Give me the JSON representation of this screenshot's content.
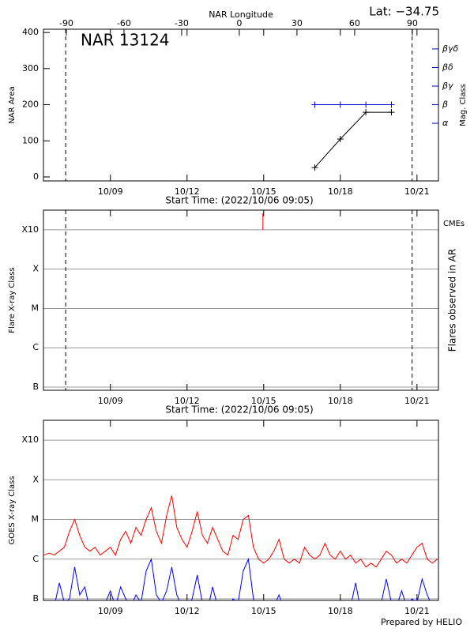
{
  "chart_data": [
    {
      "type": "line",
      "title": "NAR 13124",
      "annotation": "Lat: −34.75",
      "x_label": "Start Time: (2022/10/06 09:05)",
      "x2_label": "NAR Longitude",
      "y_label": "NAR Area",
      "y2_label": "Mag. Class",
      "y2_color": "#0000cc",
      "x": [
        17,
        18,
        19,
        20
      ],
      "series": [
        {
          "color": "#000000",
          "marker": "plus",
          "values": [
            26,
            105,
            179,
            179
          ]
        },
        {
          "color": "#0000cc",
          "marker": "plus",
          "axis": "y2",
          "values": [
            2,
            2,
            2,
            2
          ]
        }
      ],
      "xlim": [
        6.38,
        21.84
      ],
      "xticks": [
        {
          "value": 9,
          "label": "10/09"
        },
        {
          "value": 12,
          "label": "10/12"
        },
        {
          "value": 15,
          "label": "10/15"
        },
        {
          "value": 18,
          "label": "10/18"
        },
        {
          "value": 21,
          "label": "10/21"
        }
      ],
      "x2lim": [
        -101.9,
        103.6
      ],
      "x2ticks": [
        -90,
        -60,
        -30,
        0,
        30,
        60,
        90
      ],
      "ylim": [
        -11,
        409
      ],
      "yticks": [
        0,
        100,
        200,
        300,
        400
      ],
      "y2lim": [
        -2.1,
        6.06
      ],
      "y2ticks": [
        {
          "value": 1,
          "label": "α"
        },
        {
          "value": 2,
          "label": "β"
        },
        {
          "value": 3,
          "label": "βγ"
        },
        {
          "value": 4,
          "label": "βδ"
        },
        {
          "value": 5,
          "label": "βγδ"
        }
      ],
      "limb_x": [
        7.25,
        20.81
      ],
      "grid": false
    },
    {
      "type": "event",
      "x_label": "Start Time: (2022/10/06 09:05)",
      "y_label": "Flare X-ray Class",
      "y2_label": "Flares observed in AR",
      "events": [
        {
          "name": "CMEs",
          "color": "#ff0000",
          "x": [
            14.97
          ]
        }
      ],
      "xlim": [
        6.38,
        21.84
      ],
      "xticks": [
        {
          "value": 9,
          "label": "10/09"
        },
        {
          "value": 12,
          "label": "10/12"
        },
        {
          "value": 15,
          "label": "10/15"
        },
        {
          "value": 18,
          "label": "10/18"
        },
        {
          "value": 21,
          "label": "10/21"
        }
      ],
      "ylim": [
        -7.08,
        -2.5
      ],
      "yticks": [
        {
          "value": -7,
          "label": "B"
        },
        {
          "value": -6,
          "label": "C"
        },
        {
          "value": -5,
          "label": "M"
        },
        {
          "value": -4,
          "label": "X"
        },
        {
          "value": -3,
          "label": "X10"
        }
      ],
      "limb_x": [
        7.25,
        20.81
      ],
      "grid": true
    },
    {
      "type": "line",
      "y_label": "GOES X-ray Class",
      "x": [
        6.4,
        6.6,
        6.8,
        7.0,
        7.2,
        7.4,
        7.6,
        7.8,
        8.0,
        8.2,
        8.4,
        8.6,
        8.8,
        9.0,
        9.2,
        9.4,
        9.6,
        9.8,
        10.0,
        10.2,
        10.4,
        10.6,
        10.8,
        11.0,
        11.2,
        11.4,
        11.6,
        11.8,
        12.0,
        12.2,
        12.4,
        12.6,
        12.8,
        13.0,
        13.2,
        13.4,
        13.6,
        13.8,
        14.0,
        14.2,
        14.4,
        14.6,
        14.8,
        15.0,
        15.2,
        15.4,
        15.6,
        15.8,
        16.0,
        16.2,
        16.4,
        16.6,
        16.8,
        17.0,
        17.2,
        17.4,
        17.6,
        17.8,
        18.0,
        18.2,
        18.4,
        18.6,
        18.8,
        19.0,
        19.2,
        19.4,
        19.6,
        19.8,
        20.0,
        20.2,
        20.4,
        20.6,
        20.8,
        21.0,
        21.2,
        21.4,
        21.6,
        21.8
      ],
      "series": [
        {
          "color": "#ff0000",
          "values": [
            -5.9,
            -5.85,
            -5.9,
            -5.8,
            -5.7,
            -5.3,
            -5.0,
            -5.4,
            -5.7,
            -5.8,
            -5.7,
            -5.9,
            -5.8,
            -5.7,
            -5.9,
            -5.5,
            -5.3,
            -5.6,
            -5.2,
            -5.4,
            -5.0,
            -4.7,
            -5.3,
            -5.6,
            -4.9,
            -4.4,
            -5.2,
            -5.5,
            -5.7,
            -5.3,
            -4.8,
            -5.4,
            -5.6,
            -5.2,
            -5.5,
            -5.8,
            -5.9,
            -5.4,
            -5.5,
            -5.0,
            -4.9,
            -5.7,
            -6.0,
            -6.1,
            -6.0,
            -5.8,
            -5.5,
            -6.0,
            -6.1,
            -6.0,
            -6.1,
            -5.7,
            -5.9,
            -6.0,
            -5.9,
            -5.6,
            -5.9,
            -6.0,
            -5.8,
            -6.0,
            -5.9,
            -6.1,
            -6.0,
            -6.2,
            -6.1,
            -6.2,
            -6.0,
            -5.8,
            -5.9,
            -6.1,
            -6.0,
            -6.1,
            -5.9,
            -5.7,
            -5.6,
            -6.0,
            -6.1,
            -6.0
          ]
        },
        {
          "color": "#0000ff",
          "values": [
            -7.3,
            -7.3,
            -7.2,
            -6.6,
            -7.1,
            -7.0,
            -6.2,
            -6.9,
            -6.7,
            -7.3,
            -7.2,
            -7.3,
            -7.1,
            -6.8,
            -7.2,
            -6.7,
            -7.0,
            -7.2,
            -6.9,
            -7.1,
            -6.3,
            -6.0,
            -6.9,
            -7.1,
            -6.8,
            -6.2,
            -6.9,
            -7.2,
            -7.3,
            -7.0,
            -6.4,
            -7.1,
            -7.3,
            -6.7,
            -7.2,
            -7.3,
            -7.3,
            -7.0,
            -7.1,
            -6.3,
            -6.0,
            -7.0,
            -7.3,
            -7.3,
            -7.3,
            -7.2,
            -6.9,
            -7.3,
            -7.3,
            -7.3,
            -7.3,
            -7.3,
            -7.3,
            -7.3,
            -7.3,
            -7.3,
            -7.3,
            -7.3,
            -7.3,
            -7.3,
            -7.2,
            -6.6,
            -7.3,
            -7.3,
            -7.2,
            -7.3,
            -7.1,
            -6.5,
            -7.1,
            -7.2,
            -6.8,
            -7.2,
            -7.0,
            -7.1,
            -6.5,
            -6.9,
            -7.2,
            -7.1
          ]
        }
      ],
      "xlim": [
        6.38,
        21.84
      ],
      "xticks": [
        {
          "value": 9,
          "label": "10/09"
        },
        {
          "value": 12,
          "label": "10/12"
        },
        {
          "value": 15,
          "label": "10/15"
        },
        {
          "value": 18,
          "label": "10/18"
        },
        {
          "value": 21,
          "label": "10/21"
        }
      ],
      "ylim": [
        -7.04,
        -2.5
      ],
      "yticks": [
        {
          "value": -7,
          "label": "B"
        },
        {
          "value": -6,
          "label": "C"
        },
        {
          "value": -5,
          "label": "M"
        },
        {
          "value": -4,
          "label": "X"
        },
        {
          "value": -3,
          "label": "X10"
        }
      ],
      "grid": true
    }
  ],
  "footer": "Prepared by HELIO"
}
